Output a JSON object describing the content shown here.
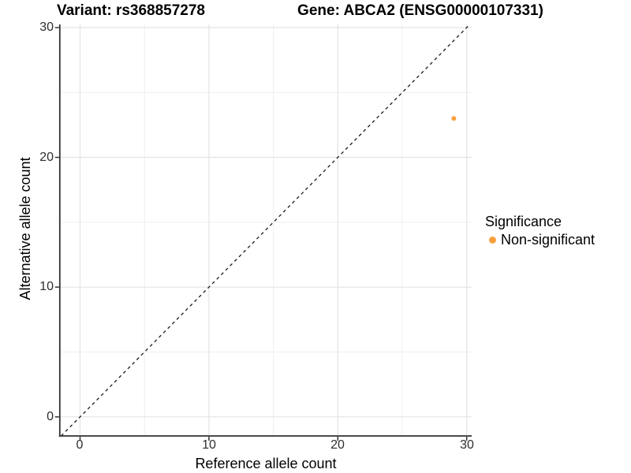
{
  "header": {
    "variant_title": "Variant: rs368857278",
    "gene_title": "Gene: ABCA2 (ENSG00000107331)"
  },
  "legend": {
    "title": "Significance",
    "items": [
      {
        "label": "Non-significant",
        "color": "#F9A03F"
      }
    ]
  },
  "chart_data": {
    "type": "scatter",
    "title": "Variant: rs368857278 / Gene: ABCA2 (ENSG00000107331)",
    "xlabel": "Reference allele count",
    "ylabel": "Alternative allele count",
    "xlim": [
      0,
      30
    ],
    "ylim": [
      0,
      30
    ],
    "x_ticks": [
      0,
      10,
      20,
      30
    ],
    "y_ticks": [
      0,
      10,
      20,
      30
    ],
    "x_minor_gridlines": [
      5,
      15,
      25
    ],
    "y_minor_gridlines": [
      5,
      15,
      25
    ],
    "grid": true,
    "legend_position": "right",
    "series": [
      {
        "name": "Non-significant",
        "color": "#F9A03F",
        "points": [
          {
            "x": 29,
            "y": 23
          }
        ]
      }
    ],
    "reference_line": {
      "kind": "identity",
      "slope": 1,
      "intercept": 0,
      "style": "dashed",
      "color": "#1a1a1a"
    },
    "colors": {
      "grid_major": "#E4E4E4",
      "grid_minor": "#EFEFEF",
      "axis_line": "#333333"
    }
  }
}
